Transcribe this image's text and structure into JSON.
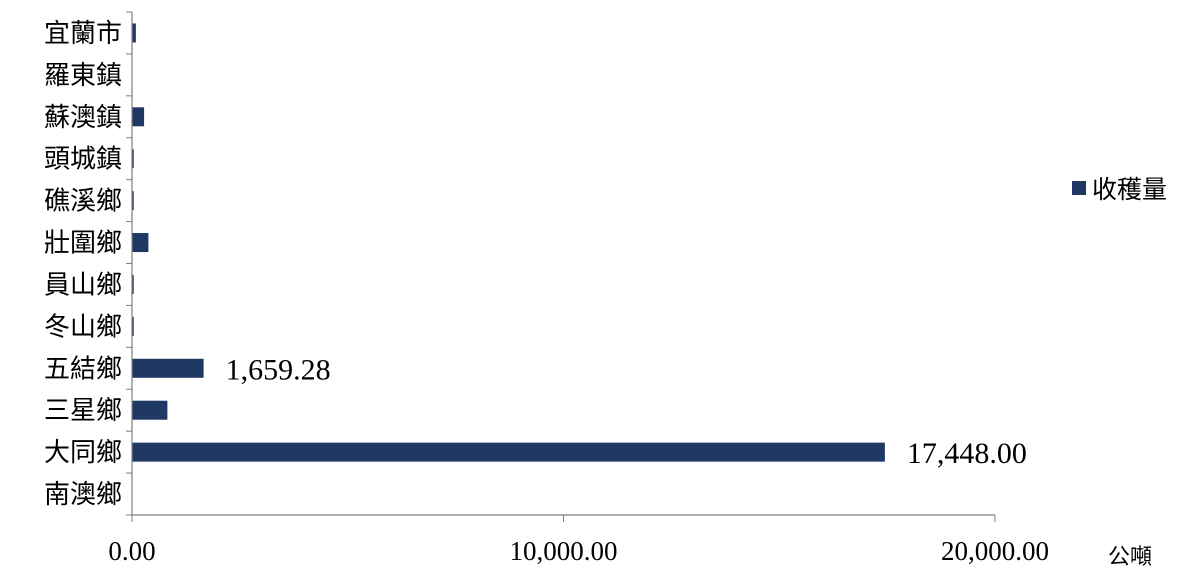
{
  "chart_data": {
    "type": "bar",
    "orientation": "horizontal",
    "categories": [
      "宜蘭市",
      "羅東鎮",
      "蘇澳鎮",
      "頭城鎮",
      "礁溪鄉",
      "壯圍鄉",
      "員山鄉",
      "冬山鄉",
      "五結鄉",
      "三星鄉",
      "大同鄉",
      "南澳鄉"
    ],
    "series": [
      {
        "name": "收穫量",
        "color": "#1f3864",
        "values": [
          90,
          0,
          280,
          40,
          40,
          380,
          40,
          40,
          1659.28,
          820,
          17448.0,
          0
        ],
        "data_labels": [
          "",
          "",
          "",
          "",
          "",
          "",
          "",
          "",
          "1,659.28",
          "",
          "17,448.00",
          ""
        ]
      }
    ],
    "xlim": [
      0,
      20000
    ],
    "x_ticks": [
      0,
      10000,
      20000
    ],
    "x_tick_labels": [
      "0.00",
      "10,000.00",
      "20,000.00"
    ],
    "x_unit": "公噸",
    "legend": {
      "position": "right",
      "label": "收穫量"
    },
    "grid": false
  }
}
